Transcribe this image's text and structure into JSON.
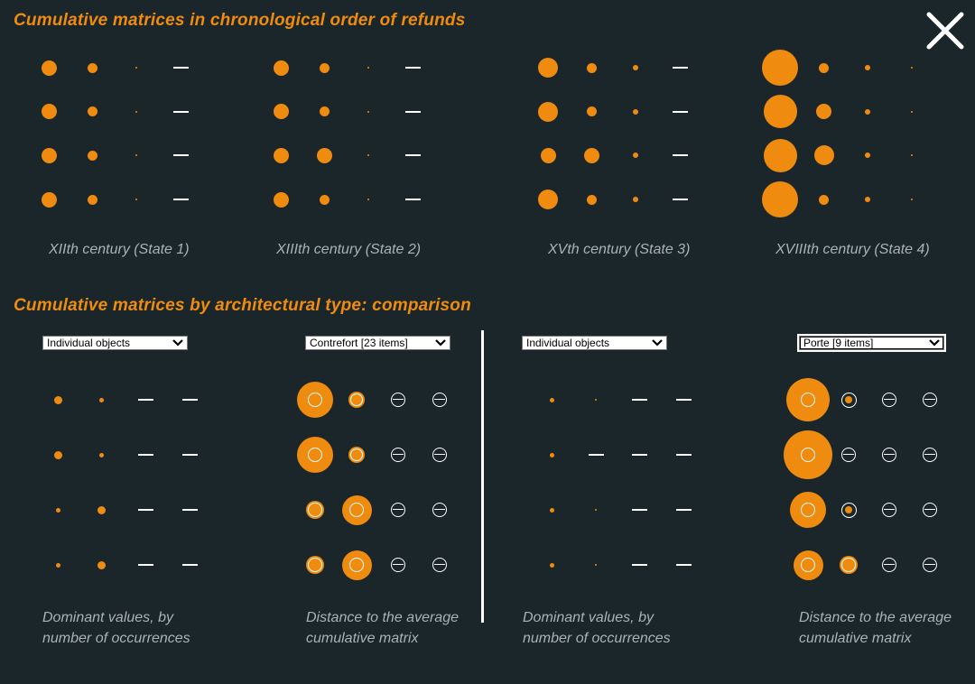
{
  "colors": {
    "accent": "#ef8c0f",
    "background": "#1b262b",
    "caption": "#a9b2b6",
    "mark": "#ffffff"
  },
  "close_button": {
    "icon": "close-icon"
  },
  "section_1": {
    "title": "Cumulative matrices in chronological order of refunds",
    "matrices": [
      {
        "caption": "XIIth century (State 1)",
        "cells": [
          [
            "dot-l",
            "dot-m",
            "dot-xs",
            "bar"
          ],
          [
            "dot-l",
            "dot-m",
            "dot-xs",
            "bar"
          ],
          [
            "dot-l",
            "dot-m",
            "dot-xs",
            "bar"
          ],
          [
            "dot-l",
            "dot-m",
            "dot-xs",
            "bar"
          ]
        ]
      },
      {
        "caption": "XIIIth century (State 2)",
        "cells": [
          [
            "dot-l",
            "dot-m",
            "dot-xs",
            "bar"
          ],
          [
            "dot-l",
            "dot-m",
            "dot-xs",
            "bar"
          ],
          [
            "dot-l",
            "dot-l",
            "dot-xs",
            "bar"
          ],
          [
            "dot-l",
            "dot-m",
            "dot-xs",
            "bar"
          ]
        ]
      },
      {
        "caption": "XVth century (State 3)",
        "cells": [
          [
            "dot-xl",
            "dot-m",
            "dot-s",
            "bar"
          ],
          [
            "dot-xl",
            "dot-m",
            "dot-s",
            "bar"
          ],
          [
            "dot-l",
            "dot-l",
            "dot-s",
            "bar"
          ],
          [
            "dot-xl",
            "dot-m",
            "dot-s",
            "bar"
          ]
        ]
      },
      {
        "caption": "XVIIIth century (State 4)",
        "cells": [
          [
            "dot-xxxl",
            "dot-m",
            "dot-s",
            "dot-xs"
          ],
          [
            "dot-xxl",
            "dot-l",
            "dot-s",
            "dot-xs"
          ],
          [
            "dot-xxl",
            "dot-xl",
            "dot-s",
            "dot-xs"
          ],
          [
            "dot-xxxl",
            "dot-m",
            "dot-s",
            "dot-xs"
          ]
        ]
      }
    ]
  },
  "section_2": {
    "title": "Cumulative matrices by architectural type: comparison",
    "panels": [
      {
        "selected": "Individual objects",
        "caption_lines": [
          "Dominant values, by",
          "number of occurrences"
        ],
        "cells": [
          [
            "dot-m",
            "dot-s",
            "bar",
            "bar"
          ],
          [
            "dot-m",
            "dot-s",
            "bar",
            "bar"
          ],
          [
            "dot-s",
            "dot-m",
            "bar",
            "bar"
          ],
          [
            "dot-s",
            "dot-m",
            "bar",
            "bar"
          ]
        ]
      },
      {
        "selected": "Contrefort [23 items]",
        "caption_lines": [
          "Distance to the average",
          "cumulative matrix"
        ],
        "cells": [
          [
            "dot-ring-xl",
            "dot-ring-m",
            "minus",
            "minus"
          ],
          [
            "dot-ring-xl",
            "dot-ring-m",
            "minus",
            "minus"
          ],
          [
            "dot-ring-s",
            "dot-ring-l",
            "minus",
            "minus"
          ],
          [
            "dot-ring-s",
            "dot-ring-l",
            "minus",
            "minus"
          ]
        ]
      },
      {
        "selected": "Individual objects",
        "caption_lines": [
          "Dominant values, by",
          "number of occurrences"
        ],
        "cells": [
          [
            "dot-s",
            "dot-xs",
            "bar",
            "bar"
          ],
          [
            "dot-s",
            "bar",
            "bar",
            "bar"
          ],
          [
            "dot-s",
            "dot-xs",
            "bar",
            "bar"
          ],
          [
            "dot-s",
            "dot-xs",
            "bar",
            "bar"
          ]
        ]
      },
      {
        "selected": "Porte [9 items]",
        "caption_lines": [
          "Distance to the average",
          "cumulative matrix"
        ],
        "cells": [
          [
            "dot-ring-xxl",
            "ring-dot",
            "minus",
            "minus"
          ],
          [
            "dot-ring-xxxl",
            "minus",
            "minus",
            "minus"
          ],
          [
            "dot-ring-xl",
            "ring-dot",
            "minus",
            "minus"
          ],
          [
            "dot-ring-l",
            "dot-ring-s",
            "minus",
            "minus"
          ]
        ]
      }
    ]
  }
}
